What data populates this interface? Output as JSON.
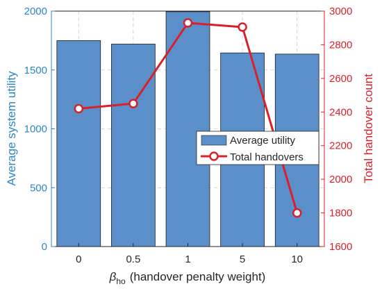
{
  "chart_data": {
    "type": "bar+line",
    "categories": [
      "0",
      "0.5",
      "1",
      "5",
      "10"
    ],
    "xlabel": {
      "beta": "β",
      "subscript": "ho",
      "text": "(handover penalty weight)"
    },
    "grid": true,
    "legend_position": "center-right",
    "y_left": {
      "label": "Average system utility",
      "lim": [
        0,
        2000
      ],
      "ticks": [
        0,
        500,
        1000,
        1500,
        2000
      ],
      "tick_labels": [
        "0",
        "500",
        "1000",
        "1500",
        "2000"
      ],
      "color": "#2b86c5"
    },
    "y_right": {
      "label": "Total handover count",
      "lim": [
        1600,
        3000
      ],
      "ticks": [
        1600,
        1800,
        2000,
        2200,
        2400,
        2600,
        2800,
        3000
      ],
      "tick_labels": [
        "1600",
        "1800",
        "2000",
        "2200",
        "2400",
        "2600",
        "2800",
        "3000"
      ],
      "color": "#d9202a"
    },
    "series": [
      {
        "name": "Average utility",
        "type": "bar",
        "axis": "left",
        "values": [
          1750,
          1720,
          1995,
          1645,
          1635
        ],
        "color": "#5b8fc9"
      },
      {
        "name": "Total handovers",
        "type": "line",
        "axis": "right",
        "values": [
          2420,
          2450,
          2930,
          2905,
          1800
        ],
        "color": "#d9202a"
      }
    ]
  }
}
